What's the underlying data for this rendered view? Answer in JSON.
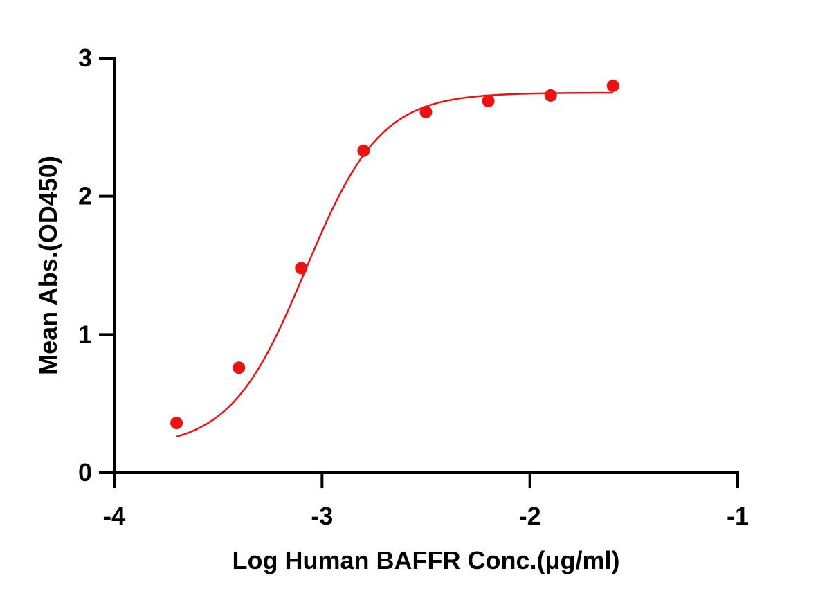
{
  "chart_data": {
    "type": "scatter",
    "title": "",
    "xlabel": "Log Human BAFFR Conc.(μg/ml)",
    "ylabel": "Mean Abs.(OD450)",
    "xlim": [
      -4,
      -1
    ],
    "ylim": [
      0,
      3
    ],
    "xticks": [
      "-4",
      "-3",
      "-2",
      "-1"
    ],
    "yticks": [
      "0",
      "1",
      "2",
      "3"
    ],
    "grid": false,
    "legend": "none",
    "color": "#ee1111",
    "series": [
      {
        "x": [
          -3.7,
          -3.4,
          -3.1,
          -2.8,
          -2.5,
          -2.2,
          -1.9,
          -1.6
        ],
        "y": [
          0.36,
          0.76,
          1.48,
          2.33,
          2.61,
          2.69,
          2.73,
          2.8
        ],
        "fit": {
          "model": "4PL",
          "bottom": 0.18,
          "top": 2.75,
          "log_ec50": -3.08,
          "hill": 2.4
        }
      }
    ]
  }
}
